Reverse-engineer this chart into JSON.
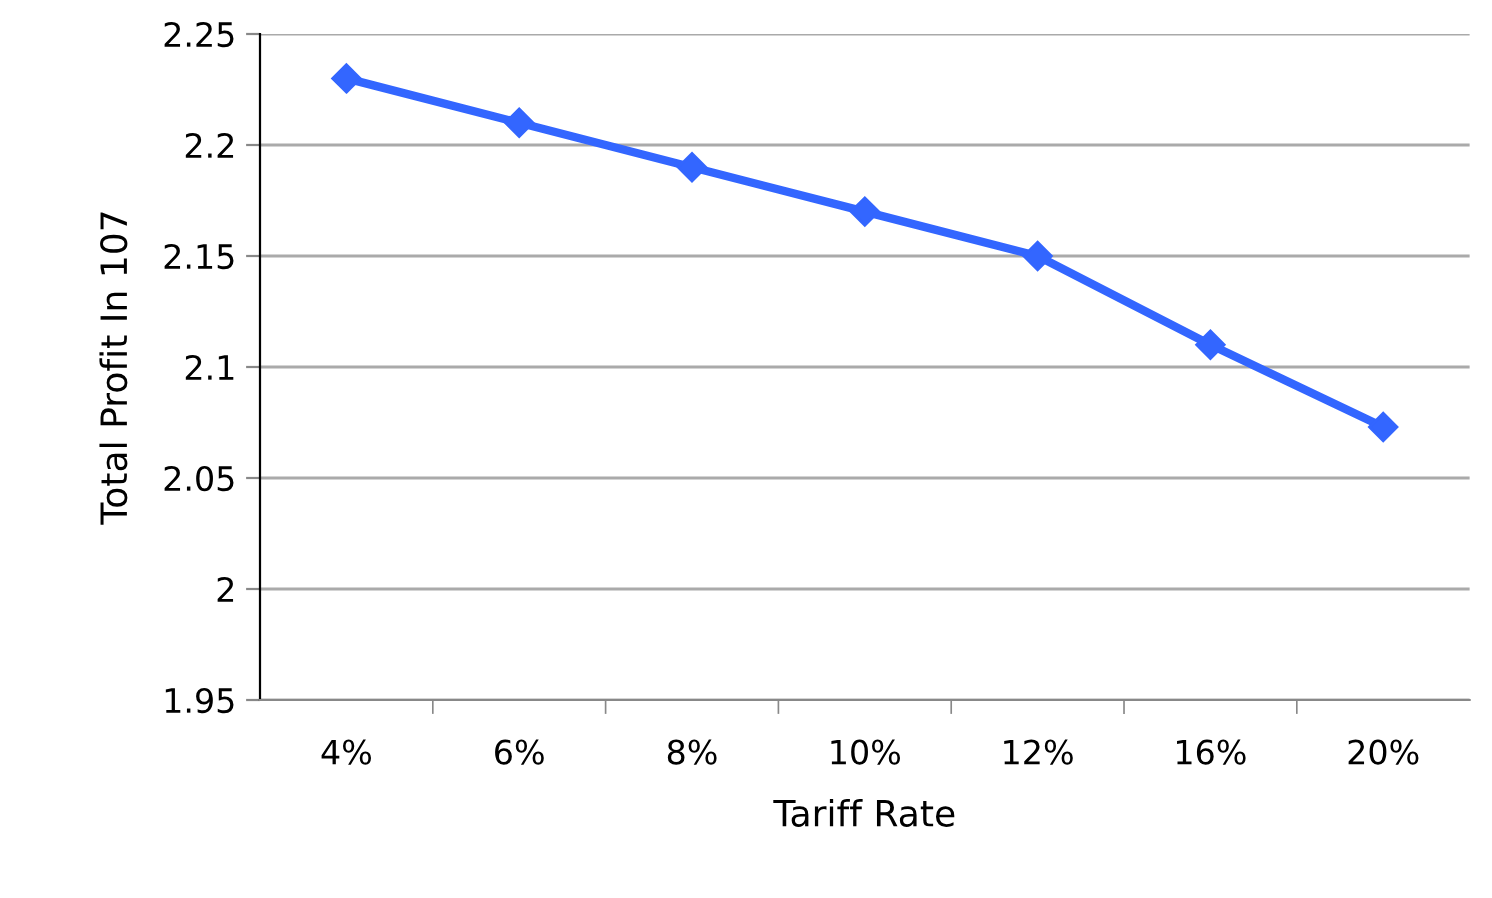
{
  "chart_data": {
    "type": "line",
    "xlabel": "Tariff Rate",
    "ylabel": "Total Profit In 107",
    "categories": [
      "4%",
      "6%",
      "8%",
      "10%",
      "12%",
      "16%",
      "20%"
    ],
    "series": [
      {
        "color": "#3366ff",
        "values": [
          2.23,
          2.21,
          2.19,
          2.17,
          2.15,
          2.11,
          2.073
        ]
      }
    ],
    "ylim": [
      1.95,
      2.25
    ],
    "yticks": [
      1.95,
      2,
      2.05,
      2.1,
      2.15,
      2.2,
      2.25
    ],
    "grid": "y",
    "marker": "diamond",
    "line_style": "solid"
  }
}
